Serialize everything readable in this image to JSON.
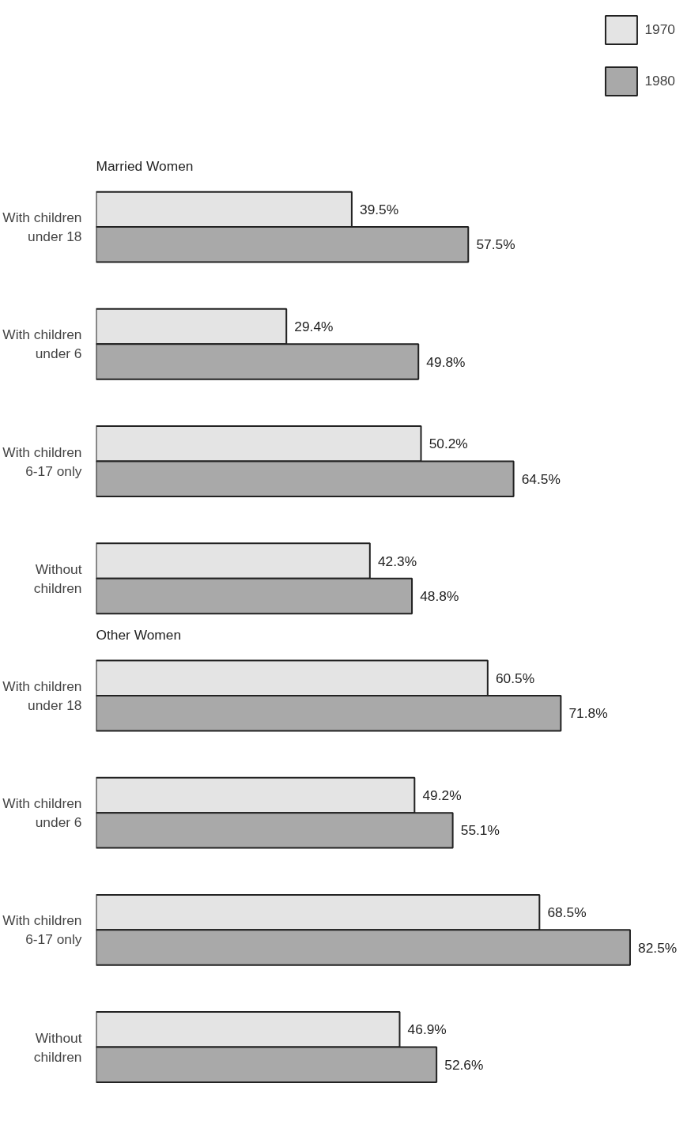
{
  "chart_data": {
    "type": "bar",
    "orientation": "horizontal",
    "tick_labels": "y",
    "categories": [
      "With children\nunder 18",
      "With children\nunder 6",
      "With children\n6-17 only",
      "Without\nchildren",
      "With children\nunder 18",
      "With children\nunder 6",
      "With children\n6-17 only",
      "Without\nchildren"
    ],
    "annotations": [
      "Married Women",
      "Other Women"
    ],
    "series": [
      {
        "name": "1970",
        "color": "#e4e4e4",
        "values": [
          39.5,
          29.4,
          50.2,
          42.3,
          60.5,
          49.2,
          68.5,
          46.9
        ],
        "value_labels": [
          "39.5%",
          "29.4%",
          "50.2%",
          "42.3%",
          "60.5%",
          "49.2%",
          "68.5%",
          "46.9%"
        ]
      },
      {
        "name": "1980",
        "color": "#a9a9a9",
        "values": [
          57.5,
          49.8,
          64.5,
          48.8,
          71.8,
          55.1,
          82.5,
          52.6
        ],
        "value_labels": [
          "57.5%",
          "49.8%",
          "64.5%",
          "48.8%",
          "71.8%",
          "55.1%",
          "82.5%",
          "52.6%"
        ]
      }
    ],
    "legend": "top right",
    "grid": false
  }
}
